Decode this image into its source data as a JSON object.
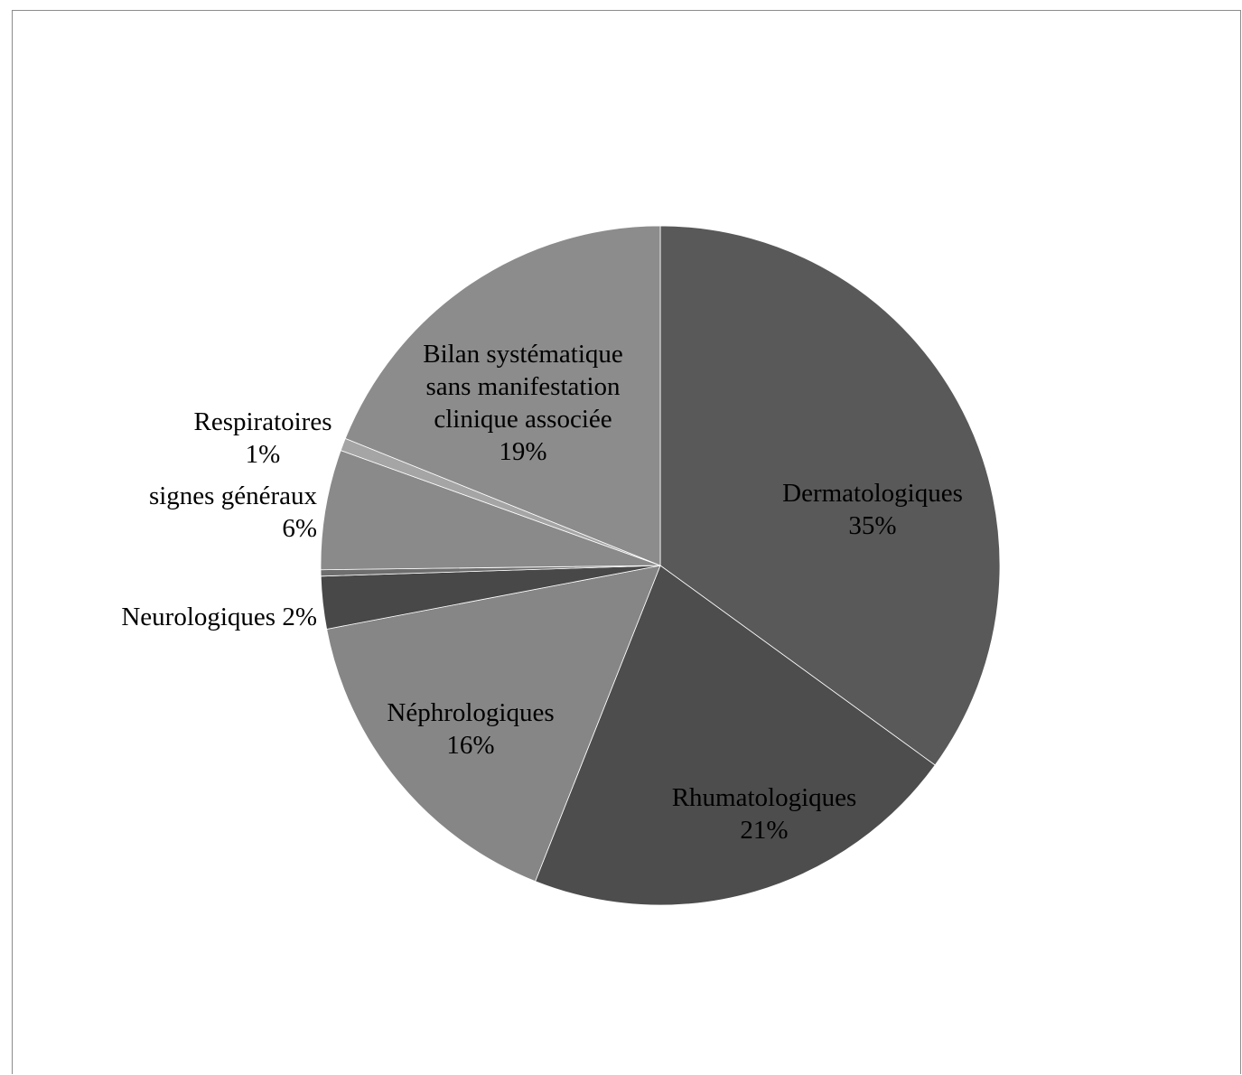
{
  "chart_data": {
    "type": "pie",
    "title": "",
    "start_angle_deg": 0,
    "direction": "clockwise",
    "slices": [
      {
        "name": "Dermatologiques",
        "value": 35,
        "percent_label": "35%",
        "color": "#595959",
        "label_lines": [
          "Dermatologiques",
          "35%"
        ]
      },
      {
        "name": "Rhumatologiques",
        "value": 21,
        "percent_label": "21%",
        "color": "#4d4d4d",
        "label_lines": [
          "Rhumatologiques",
          "21%"
        ]
      },
      {
        "name": "Néphrologiques",
        "value": 16,
        "percent_label": "16%",
        "color": "#868686",
        "label_lines": [
          "Néphrologiques",
          "16%"
        ]
      },
      {
        "name": "Neurologiques",
        "value": 2.5,
        "percent_label": "2%",
        "color": "#484848",
        "label_lines": [
          "Neurologiques 2%"
        ]
      },
      {
        "name": "",
        "value": 0.3,
        "percent_label": "",
        "color": "#6e6e6e",
        "label_lines": []
      },
      {
        "name": "signes généraux",
        "value": 5.7,
        "percent_label": "6%",
        "color": "#8a8a8a",
        "label_lines": [
          "signes généraux",
          "6%"
        ]
      },
      {
        "name": "Respiratoires",
        "value": 0.6,
        "percent_label": "1%",
        "color": "#a5a5a5",
        "label_lines": [
          "Respiratoires",
          "1%"
        ]
      },
      {
        "name": "Bilan systématique sans manifestation clinique associée",
        "value": 18.9,
        "percent_label": "19%",
        "color": "#8c8c8c",
        "label_lines": [
          "Bilan systématique",
          "sans manifestation",
          "clinique associée",
          "19%"
        ]
      }
    ]
  }
}
